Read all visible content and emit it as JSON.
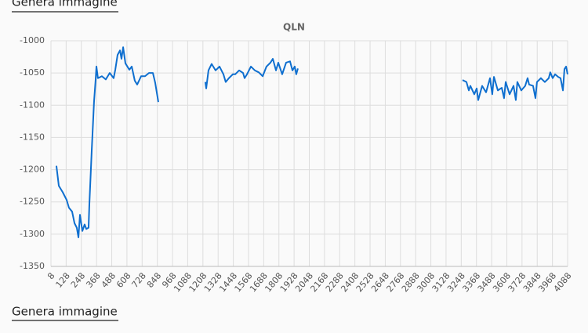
{
  "links": [
    "Genera immagine",
    "Genera immagine"
  ],
  "chart_data": {
    "type": "line",
    "title": "QLN",
    "x": [
      51,
      70,
      101,
      132,
      150,
      175,
      194,
      212,
      225,
      237,
      256,
      274,
      287,
      305,
      311,
      330,
      348,
      361,
      367,
      379,
      410,
      441,
      472,
      503,
      516,
      534,
      553,
      565,
      578,
      596,
      627,
      646,
      670,
      689,
      720,
      751,
      782,
      813,
      831,
      856,
      1000,
      1227,
      1234,
      1252,
      1277,
      1308,
      1339,
      1370,
      1388,
      1413,
      1444,
      1463,
      1494,
      1525,
      1537,
      1556,
      1587,
      1618,
      1649,
      1680,
      1710,
      1741,
      1760,
      1785,
      1803,
      1834,
      1865,
      1896,
      1915,
      1933,
      1945,
      1958,
      2500,
      3258,
      3289,
      3308,
      3320,
      3351,
      3370,
      3382,
      3413,
      3444,
      3475,
      3493,
      3506,
      3537,
      3568,
      3586,
      3599,
      3630,
      3661,
      3679,
      3691,
      3722,
      3753,
      3772,
      3784,
      3815,
      3834,
      3846,
      3877,
      3908,
      3939,
      3951,
      3970,
      3989,
      4013,
      4032,
      4051,
      4063,
      4076,
      4088
    ],
    "series": [
      {
        "name": "QLN",
        "color": "#0f6fcf",
        "values": [
          -1194,
          -1225,
          -1235,
          -1247,
          -1259,
          -1265,
          -1283,
          -1290,
          -1305,
          -1270,
          -1295,
          -1285,
          -1292,
          -1290,
          -1255,
          -1170,
          -1095,
          -1060,
          -1040,
          -1058,
          -1055,
          -1060,
          -1050,
          -1058,
          -1045,
          -1022,
          -1015,
          -1028,
          -1010,
          -1035,
          -1045,
          -1040,
          -1062,
          -1068,
          -1055,
          -1055,
          -1050,
          -1050,
          -1065,
          -1095,
          null,
          -1064,
          -1074,
          -1046,
          -1036,
          -1046,
          -1040,
          -1052,
          -1064,
          -1058,
          -1052,
          -1052,
          -1046,
          -1050,
          -1058,
          -1052,
          -1040,
          -1046,
          -1049,
          -1055,
          -1040,
          -1034,
          -1028,
          -1046,
          -1034,
          -1052,
          -1034,
          -1032,
          -1046,
          -1040,
          -1052,
          -1043,
          null,
          -1061,
          -1064,
          -1077,
          -1070,
          -1083,
          -1074,
          -1092,
          -1070,
          -1080,
          -1058,
          -1083,
          -1056,
          -1077,
          -1073,
          -1089,
          -1064,
          -1083,
          -1070,
          -1092,
          -1064,
          -1077,
          -1070,
          -1058,
          -1068,
          -1070,
          -1089,
          -1064,
          -1058,
          -1064,
          -1058,
          -1049,
          -1058,
          -1052,
          -1056,
          -1058,
          -1077,
          -1044,
          -1040,
          -1052
        ]
      }
    ],
    "xlim": [
      8,
      4088
    ],
    "xticks": [
      8,
      128,
      248,
      368,
      488,
      608,
      728,
      848,
      968,
      1088,
      1208,
      1328,
      1448,
      1568,
      1688,
      1808,
      1928,
      2048,
      2168,
      2288,
      2408,
      2528,
      2648,
      2768,
      2888,
      3008,
      3128,
      3248,
      3368,
      3488,
      3608,
      3728,
      3848,
      3968,
      4088
    ],
    "ylim": [
      -1350,
      -1000
    ],
    "yticks": [
      -1000,
      -1050,
      -1100,
      -1150,
      -1200,
      -1250,
      -1300,
      -1350
    ],
    "grid": true
  }
}
